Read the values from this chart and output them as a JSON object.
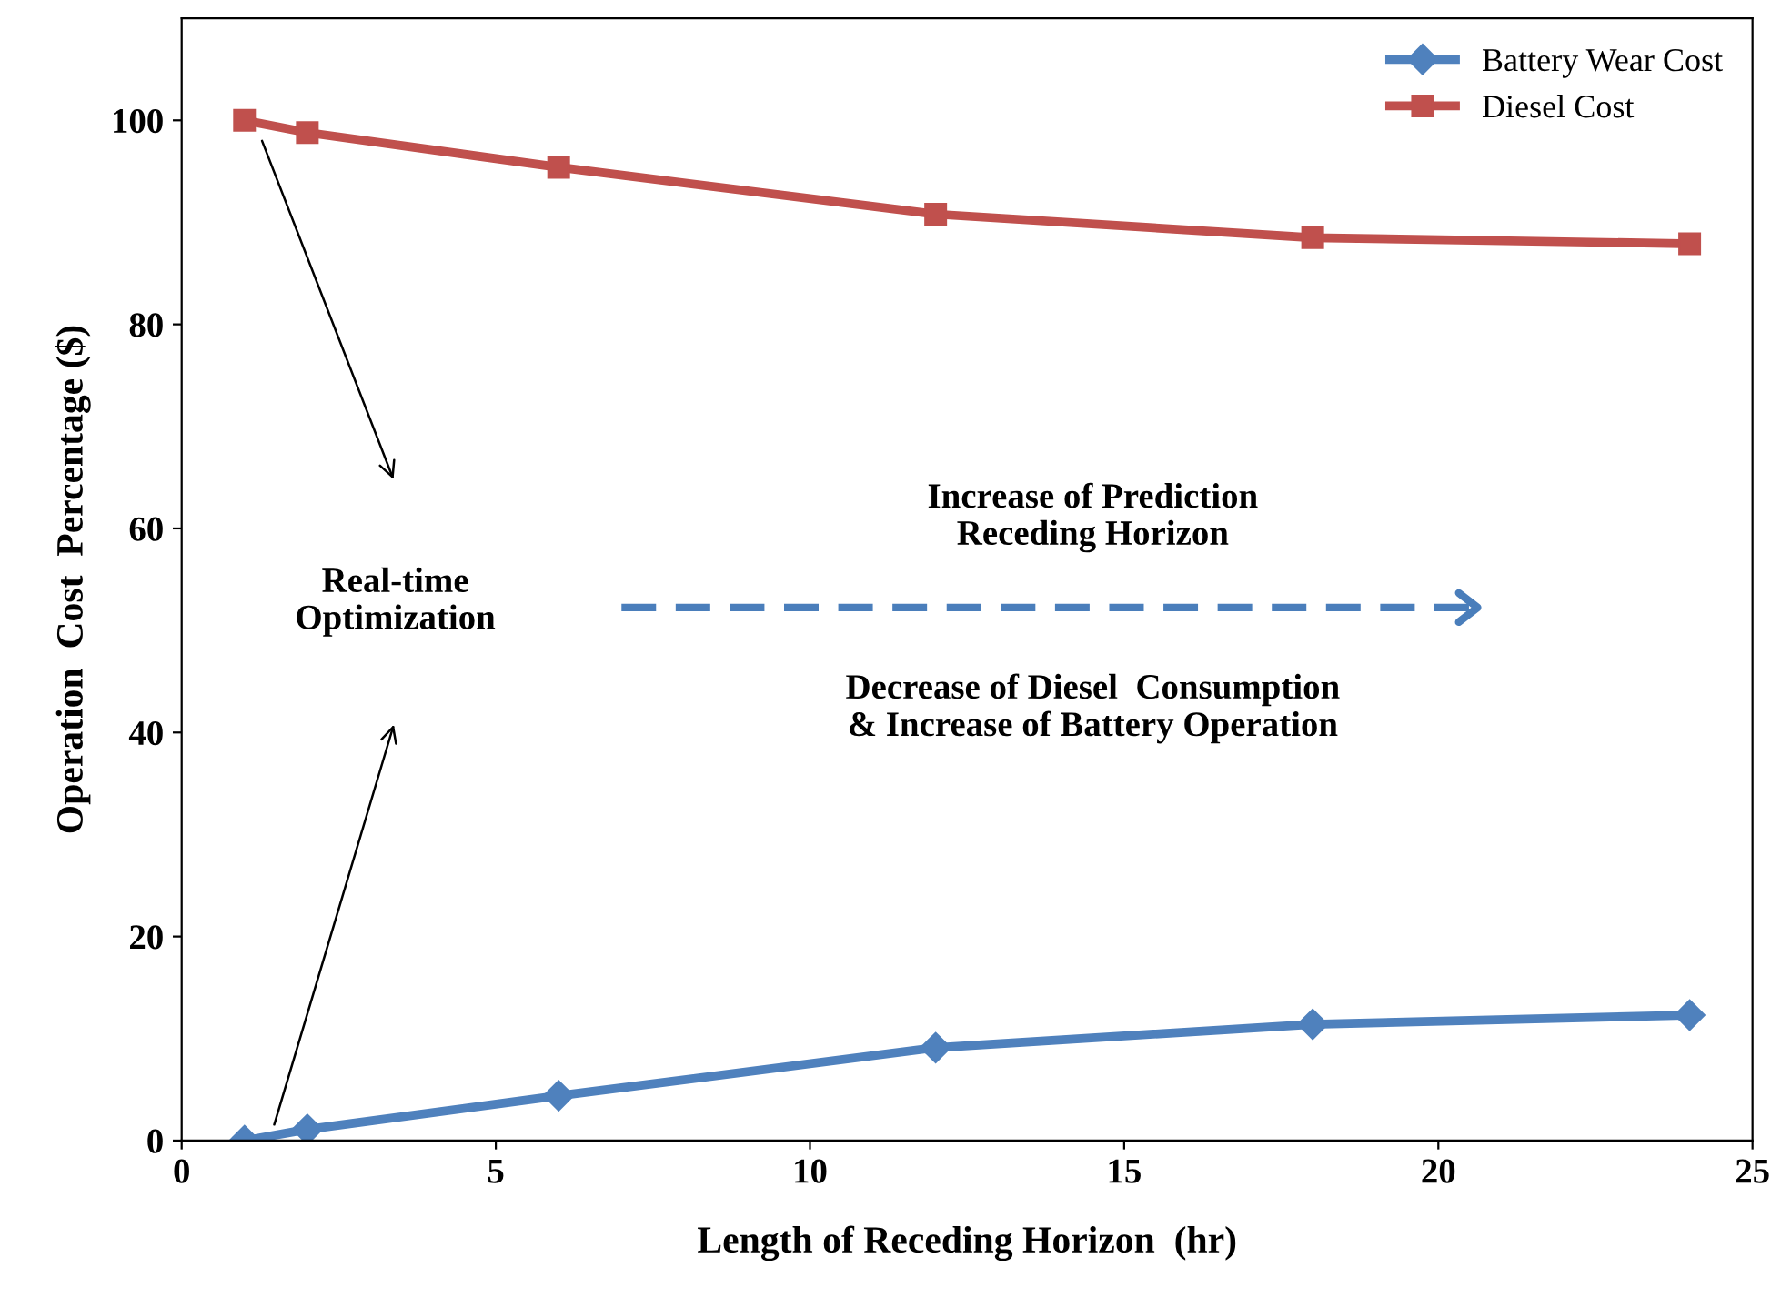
{
  "chart_data": {
    "type": "line",
    "xlabel": "Length of Receding Horizon  (hr)",
    "ylabel": "Operation  Cost  Percentage ($)",
    "x": [
      1,
      2,
      6,
      12,
      18,
      24
    ],
    "series": [
      {
        "name": "Battery Wear Cost",
        "color": "#4f81bd",
        "marker": "diamond",
        "values": [
          0,
          1.1,
          4.4,
          9.1,
          11.4,
          12.3
        ]
      },
      {
        "name": "Diesel Cost",
        "color": "#c0504d",
        "marker": "square",
        "values": [
          100,
          98.8,
          95.4,
          90.8,
          88.5,
          87.9
        ]
      }
    ],
    "xlim": [
      0,
      25
    ],
    "xticks": [
      0,
      5,
      10,
      15,
      20,
      25
    ],
    "ylim": [
      0,
      110
    ],
    "yticks": [
      0,
      20,
      40,
      60,
      80,
      100
    ],
    "legend": "top right",
    "grid": false,
    "line_style": "solid",
    "annotations": [
      "Real-time\nOptimization",
      "Increase of Prediction\nReceding Horizon",
      "Decrease of Diesel  Consumption\n& Increase of Battery Operation"
    ]
  }
}
